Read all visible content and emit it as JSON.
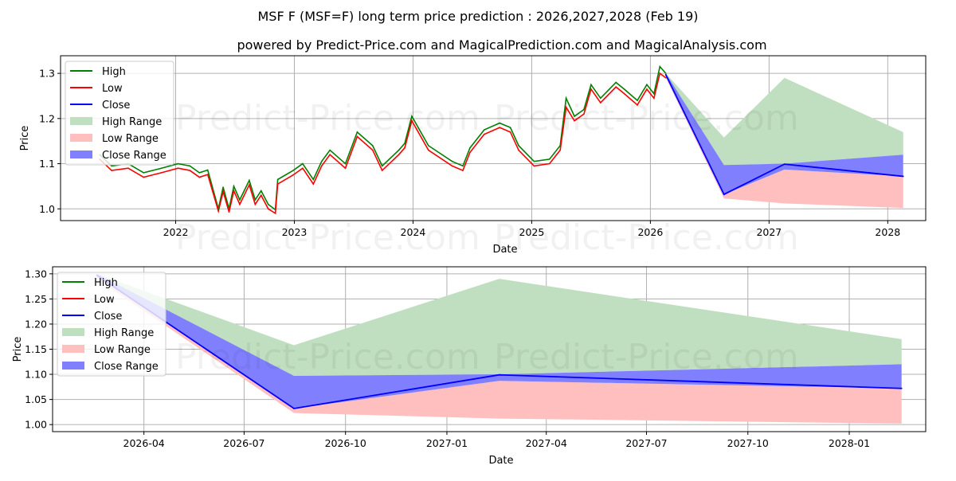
{
  "title": "MSF F (MSF=F) long term price prediction : 2026,2027,2028 (Feb 19)",
  "subtitle": "powered by Predict-Price.com and MagicalPrediction.com and MagicalAnalysis.com",
  "watermark": "Predict-Price.com",
  "colors": {
    "high": "#008000",
    "low": "#ff0000",
    "close": "#0000ff",
    "high_range": "#c0dfc0",
    "low_range": "#ffbfbf",
    "close_range": "#8080ff"
  },
  "legend": [
    "High",
    "Low",
    "Close",
    "High Range",
    "Low Range",
    "Close Range"
  ],
  "chart_data": [
    {
      "type": "line",
      "xlabel": "Date",
      "ylabel": "Price",
      "xlim_year": [
        2021.03,
        2028.32
      ],
      "ylim": [
        0.974,
        1.339
      ],
      "xticks": [
        "2022",
        "2023",
        "2024",
        "2025",
        "2026",
        "2027",
        "2028"
      ],
      "yticks": [
        "1.0",
        "1.1",
        "1.2",
        "1.3"
      ],
      "grid": true,
      "legend_position": "top-left",
      "history": {
        "x_year": [
          2021.36,
          2021.46,
          2021.6,
          2021.73,
          2021.88,
          2022.02,
          2022.12,
          2022.2,
          2022.27,
          2022.36,
          2022.4,
          2022.45,
          2022.49,
          2022.54,
          2022.62,
          2022.67,
          2022.72,
          2022.78,
          2022.84,
          2022.86,
          2022.99,
          2023.07,
          2023.16,
          2023.23,
          2023.3,
          2023.43,
          2023.53,
          2023.66,
          2023.74,
          2023.88,
          2023.93,
          2023.99,
          2024.13,
          2024.33,
          2024.42,
          2024.48,
          2024.6,
          2024.73,
          2024.82,
          2024.89,
          2025.02,
          2025.15,
          2025.24,
          2025.29,
          2025.36,
          2025.44,
          2025.5,
          2025.58,
          2025.71,
          2025.78,
          2025.89,
          2025.97,
          2026.03,
          2026.08,
          2026.13
        ],
        "high": [
          1.12,
          1.095,
          1.1,
          1.08,
          1.09,
          1.1,
          1.095,
          1.08,
          1.086,
          1.0,
          1.048,
          1.0,
          1.05,
          1.02,
          1.063,
          1.02,
          1.04,
          1.01,
          0.998,
          1.065,
          1.085,
          1.1,
          1.065,
          1.105,
          1.13,
          1.1,
          1.17,
          1.14,
          1.095,
          1.13,
          1.145,
          1.205,
          1.14,
          1.105,
          1.095,
          1.135,
          1.175,
          1.19,
          1.18,
          1.14,
          1.105,
          1.11,
          1.14,
          1.245,
          1.205,
          1.22,
          1.275,
          1.245,
          1.28,
          1.265,
          1.24,
          1.275,
          1.255,
          1.315,
          1.3
        ],
        "low": [
          1.11,
          1.085,
          1.09,
          1.07,
          1.08,
          1.09,
          1.085,
          1.07,
          1.076,
          0.995,
          1.038,
          0.993,
          1.04,
          1.01,
          1.053,
          1.01,
          1.03,
          1.0,
          0.99,
          1.055,
          1.075,
          1.09,
          1.055,
          1.095,
          1.12,
          1.09,
          1.16,
          1.13,
          1.085,
          1.12,
          1.135,
          1.195,
          1.13,
          1.095,
          1.085,
          1.125,
          1.165,
          1.18,
          1.17,
          1.13,
          1.095,
          1.1,
          1.13,
          1.225,
          1.195,
          1.21,
          1.265,
          1.235,
          1.27,
          1.255,
          1.23,
          1.265,
          1.245,
          1.3,
          1.29
        ]
      },
      "prediction": {
        "x_year": [
          2026.13,
          2026.62,
          2027.13,
          2028.13
        ],
        "close": [
          1.297,
          1.032,
          1.099,
          1.072
        ],
        "high_range": [
          [
            1.295,
            1.3
          ],
          [
            1.097,
            1.158
          ],
          [
            1.1,
            1.29
          ],
          [
            1.12,
            1.17
          ]
        ],
        "low_range": [
          [
            1.29,
            1.297
          ],
          [
            1.023,
            1.032
          ],
          [
            1.012,
            1.087
          ],
          [
            1.002,
            1.072
          ]
        ],
        "close_range": [
          [
            1.295,
            1.3
          ],
          [
            1.032,
            1.097
          ],
          [
            1.087,
            1.1
          ],
          [
            1.072,
            1.12
          ]
        ]
      }
    },
    {
      "type": "line",
      "xlabel": "Date",
      "ylabel": "Price",
      "xlim_year": [
        2026.02,
        2028.19
      ],
      "ylim": [
        0.986,
        1.314
      ],
      "xticks": [
        [
          "2026-04",
          2026.247
        ],
        [
          "2026-07",
          2026.496
        ],
        [
          "2026-10",
          2026.748
        ],
        [
          "2027-01",
          2027.0
        ],
        [
          "2027-04",
          2027.247
        ],
        [
          "2027-07",
          2027.496
        ],
        [
          "2027-10",
          2027.748
        ],
        [
          "2028-01",
          2028.0
        ]
      ],
      "yticks": [
        "1.00",
        "1.05",
        "1.10",
        "1.15",
        "1.20",
        "1.25",
        "1.30"
      ],
      "grid": true,
      "legend_position": "top-left",
      "prediction": {
        "x_year": [
          2026.13,
          2026.62,
          2027.13,
          2028.13
        ],
        "close": [
          1.297,
          1.032,
          1.099,
          1.072
        ],
        "high_range": [
          [
            1.295,
            1.3
          ],
          [
            1.097,
            1.158
          ],
          [
            1.1,
            1.29
          ],
          [
            1.12,
            1.17
          ]
        ],
        "low_range": [
          [
            1.29,
            1.297
          ],
          [
            1.023,
            1.032
          ],
          [
            1.012,
            1.087
          ],
          [
            1.002,
            1.072
          ]
        ],
        "close_range": [
          [
            1.295,
            1.3
          ],
          [
            1.032,
            1.097
          ],
          [
            1.087,
            1.1
          ],
          [
            1.072,
            1.12
          ]
        ]
      }
    }
  ]
}
